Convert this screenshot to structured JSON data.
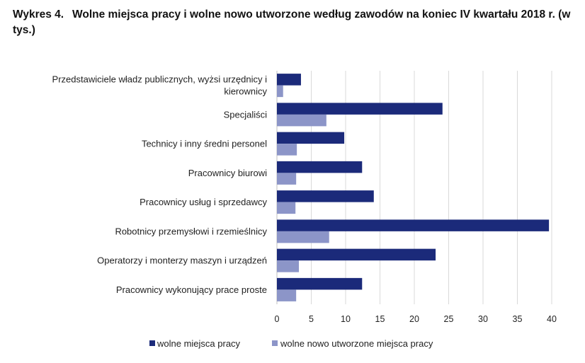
{
  "chart_data": {
    "type": "bar",
    "orientation": "horizontal",
    "title_prefix": "Wykres 4.",
    "title": "Wolne miejsca pracy i wolne nowo utworzone według zawodów na koniec IV kwartału 2018 r. (w tys.)",
    "categories": [
      [
        "Przedstawiciele władz publicznych, wyżsi urzędnicy i",
        "kierownicy"
      ],
      [
        "Specjaliści"
      ],
      [
        "Technicy i inny średni personel"
      ],
      [
        "Pracownicy biurowi"
      ],
      [
        "Pracownicy usług i sprzedawcy"
      ],
      [
        "Robotnicy przemysłowi i rzemieślnicy"
      ],
      [
        "Operatorzy i monterzy maszyn i urządzeń"
      ],
      [
        "Pracownicy wykonujący prace proste"
      ]
    ],
    "series": [
      {
        "name": "wolne miejsca pracy",
        "color": "#1b2a7a",
        "values": [
          3.5,
          24.1,
          9.8,
          12.4,
          14.1,
          39.6,
          23.1,
          12.4
        ]
      },
      {
        "name": "wolne nowo utworzone miejsca pracy",
        "color": "#8c95c8",
        "values": [
          0.9,
          7.2,
          2.9,
          2.8,
          2.7,
          7.6,
          3.2,
          2.8
        ]
      }
    ],
    "xlim": [
      0,
      40
    ],
    "xticks": [
      "0",
      "5",
      "10",
      "15",
      "20",
      "25",
      "30",
      "35",
      "40"
    ],
    "grid": true,
    "legend_position": "bottom"
  }
}
